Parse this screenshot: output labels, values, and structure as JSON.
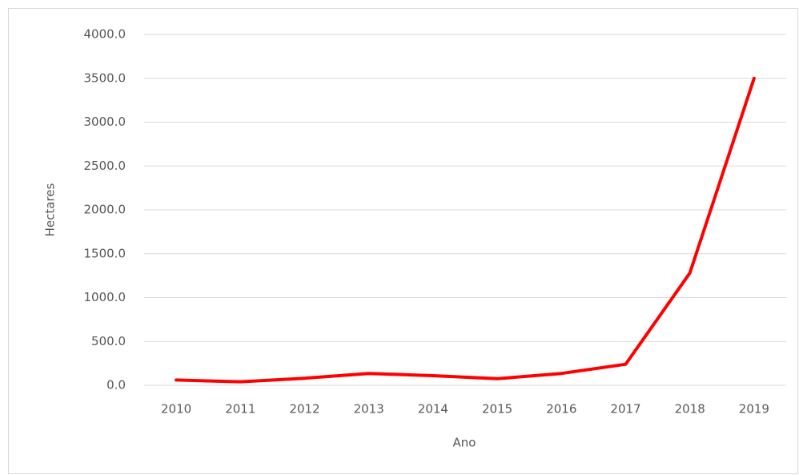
{
  "chart_data": {
    "type": "line",
    "x_label": "Ano",
    "y_label": "Hectares",
    "categories": [
      "2010",
      "2011",
      "2012",
      "2013",
      "2014",
      "2015",
      "2016",
      "2017",
      "2018",
      "2019"
    ],
    "series": [
      {
        "color": "#ff0000",
        "values": [
          60,
          40,
          80,
          135,
          110,
          75,
          135,
          240,
          1280,
          3500
        ]
      }
    ],
    "ylim": [
      0,
      4000
    ],
    "yticks": [
      {
        "value": 0,
        "label": "0.0"
      },
      {
        "value": 500,
        "label": "500.0"
      },
      {
        "value": 1000,
        "label": "1000.0"
      },
      {
        "value": 1500,
        "label": "1500.0"
      },
      {
        "value": 2000,
        "label": "2000.0"
      },
      {
        "value": 2500,
        "label": "2500.0"
      },
      {
        "value": 3000,
        "label": "3000.0"
      },
      {
        "value": 3500,
        "label": "3500.0"
      },
      {
        "value": 4000,
        "label": "4000.0"
      }
    ],
    "grid": true
  }
}
